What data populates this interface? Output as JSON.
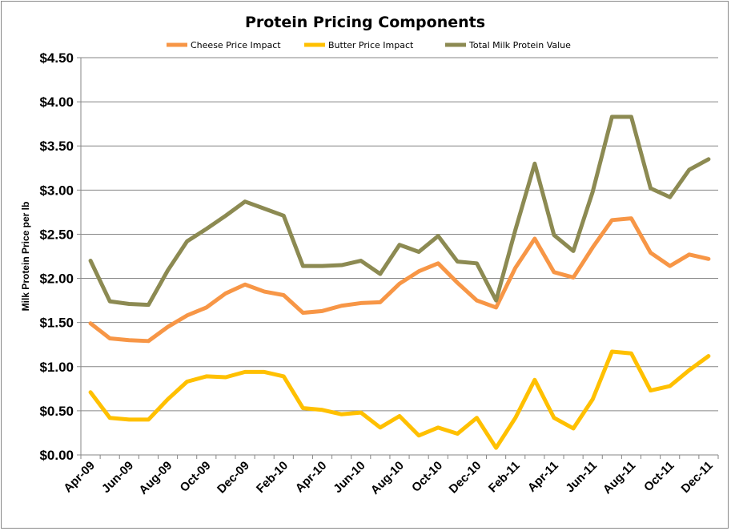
{
  "chart_data": {
    "type": "line",
    "title": "Protein Pricing Components",
    "ylabel": "Milk Protein Price per lb",
    "xlabel": "",
    "ylim": [
      0,
      4.5
    ],
    "yticks": [
      "$0.00",
      "$0.50",
      "$1.00",
      "$1.50",
      "$2.00",
      "$2.50",
      "$3.00",
      "$3.50",
      "$4.00",
      "$4.50"
    ],
    "grid": true,
    "legend": "top",
    "x": [
      "Apr-09",
      "May-09",
      "Jun-09",
      "Jul-09",
      "Aug-09",
      "Sep-09",
      "Oct-09",
      "Nov-09",
      "Dec-09",
      "Jan-10",
      "Feb-10",
      "Mar-10",
      "Apr-10",
      "May-10",
      "Jun-10",
      "Jul-10",
      "Aug-10",
      "Sep-10",
      "Oct-10",
      "Nov-10",
      "Dec-10",
      "Jan-11",
      "Feb-11",
      "Mar-11",
      "Apr-11",
      "May-11",
      "Jun-11",
      "Jul-11",
      "Aug-11",
      "Sep-11",
      "Oct-11",
      "Nov-11",
      "Dec-11"
    ],
    "xticklabels": [
      "Apr-09",
      "Jun-09",
      "Aug-09",
      "Oct-09",
      "Dec-09",
      "Feb-10",
      "Apr-10",
      "Jun-10",
      "Aug-10",
      "Oct-10",
      "Dec-10",
      "Feb-11",
      "Apr-11",
      "Jun-11",
      "Aug-11",
      "Oct-11",
      "Dec-11"
    ],
    "series": [
      {
        "name": "Cheese Price Impact",
        "color": "#F79646",
        "values": [
          1.49,
          1.32,
          1.3,
          1.29,
          1.45,
          1.58,
          1.67,
          1.83,
          1.93,
          1.85,
          1.81,
          1.61,
          1.63,
          1.69,
          1.72,
          1.73,
          1.94,
          2.08,
          2.17,
          1.95,
          1.75,
          1.67,
          2.12,
          2.45,
          2.07,
          2.01,
          2.35,
          2.66,
          2.68,
          2.29,
          2.14,
          2.27,
          2.22
        ]
      },
      {
        "name": "Butter Price Impact",
        "color": "#FFC000",
        "values": [
          0.71,
          0.42,
          0.4,
          0.4,
          0.63,
          0.83,
          0.89,
          0.88,
          0.94,
          0.94,
          0.89,
          0.53,
          0.51,
          0.46,
          0.48,
          0.31,
          0.44,
          0.22,
          0.31,
          0.24,
          0.42,
          0.08,
          0.42,
          0.85,
          0.42,
          0.3,
          0.63,
          1.17,
          1.15,
          0.73,
          0.78,
          0.96,
          1.12
        ]
      },
      {
        "name": "Total Milk Protein Value",
        "color": "#8C8A52",
        "values": [
          2.2,
          1.74,
          1.71,
          1.7,
          2.09,
          2.42,
          2.56,
          2.71,
          2.87,
          2.79,
          2.71,
          2.14,
          2.14,
          2.15,
          2.2,
          2.05,
          2.38,
          2.3,
          2.48,
          2.19,
          2.17,
          1.75,
          2.55,
          3.3,
          2.49,
          2.31,
          2.98,
          3.83,
          3.83,
          3.02,
          2.92,
          3.23,
          3.35
        ]
      }
    ]
  }
}
